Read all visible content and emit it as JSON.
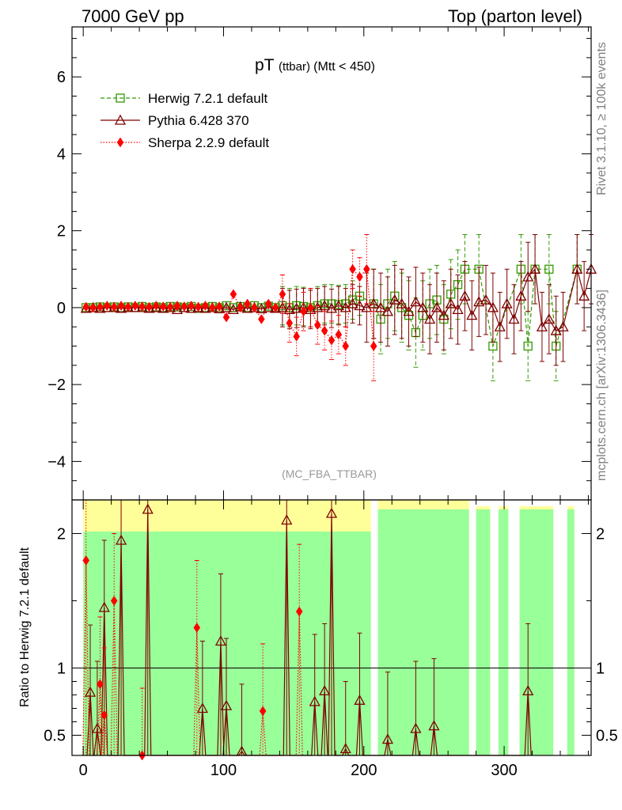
{
  "header": {
    "left": "7000 GeV pp",
    "right": "Top (parton level)"
  },
  "side_labels": {
    "rivet": "Rivet 3.1.10, ≥ 100k events",
    "mcplots": "mcplots.cern.ch [arXiv:1306.3436]"
  },
  "chart_data": [
    {
      "type": "line",
      "title_main": "pT",
      "title_sub": "(ttbar)",
      "title_cut": "(Mtt < 450)",
      "analysis": "(MC_FBA_TTBAR)",
      "xlim": [
        -8,
        362
      ],
      "ylim": [
        -5,
        7.3
      ],
      "y_ticks": [
        -4,
        -2,
        0,
        2,
        4,
        6
      ],
      "y_tick_labels": [
        "−4",
        "−2",
        "0",
        "2",
        "4",
        "6"
      ],
      "legend_position": "top-left",
      "series": [
        {
          "name": "Herwig 7.2.1 default",
          "color": "#339900",
          "marker": "open-square",
          "line": "dashed",
          "points": [
            [
              2,
              0.0
            ],
            [
              7,
              0.0
            ],
            [
              12,
              0.02
            ],
            [
              17,
              0.0
            ],
            [
              22,
              0.02
            ],
            [
              27,
              0.0
            ],
            [
              32,
              0.02
            ],
            [
              37,
              0.0
            ],
            [
              42,
              0.03
            ],
            [
              47,
              0.0
            ],
            [
              52,
              0.02
            ],
            [
              57,
              0.0
            ],
            [
              62,
              0.03
            ],
            [
              67,
              0.02
            ],
            [
              72,
              0.0
            ],
            [
              77,
              0.03
            ],
            [
              82,
              -0.02
            ],
            [
              87,
              0.0
            ],
            [
              92,
              0.03
            ],
            [
              97,
              0.0
            ],
            [
              102,
              0.05
            ],
            [
              107,
              0.0
            ],
            [
              112,
              0.03
            ],
            [
              117,
              0.0
            ],
            [
              122,
              0.05
            ],
            [
              127,
              0.0
            ],
            [
              132,
              0.04
            ],
            [
              137,
              0.0
            ],
            [
              142,
              0.05
            ],
            [
              147,
              0.0
            ],
            [
              152,
              0.05
            ],
            [
              157,
              0.03
            ],
            [
              162,
              0.0
            ],
            [
              167,
              0.05
            ],
            [
              172,
              0.1
            ],
            [
              177,
              0.1
            ],
            [
              182,
              0.08
            ],
            [
              187,
              0.1
            ],
            [
              192,
              0.2
            ],
            [
              197,
              0.3
            ],
            [
              207,
              0.1
            ],
            [
              212,
              -0.3
            ],
            [
              217,
              0.1
            ],
            [
              222,
              0.3
            ],
            [
              227,
              0.0
            ],
            [
              232,
              -0.2
            ],
            [
              237,
              -0.65
            ],
            [
              242,
              -0.2
            ],
            [
              247,
              0.1
            ],
            [
              252,
              0.2
            ],
            [
              257,
              -0.3
            ],
            [
              262,
              0.35
            ],
            [
              267,
              0.6
            ],
            [
              272,
              1.0
            ],
            [
              282,
              1.0
            ],
            [
              292,
              -1.0
            ],
            [
              312,
              1.0
            ],
            [
              317,
              -1.0
            ],
            [
              322,
              1.0
            ],
            [
              332,
              1.0
            ],
            [
              337,
              -1.0
            ],
            [
              352,
              1.0
            ]
          ]
        },
        {
          "name": "Pythia 6.428 370",
          "color": "#7f0000",
          "marker": "open-triangle",
          "line": "solid",
          "points": [
            [
              2,
              -0.02
            ],
            [
              7,
              0.0
            ],
            [
              12,
              -0.02
            ],
            [
              17,
              0.0
            ],
            [
              22,
              0.0
            ],
            [
              27,
              -0.02
            ],
            [
              32,
              0.0
            ],
            [
              37,
              0.0
            ],
            [
              42,
              0.0
            ],
            [
              47,
              -0.02
            ],
            [
              52,
              0.0
            ],
            [
              57,
              -0.02
            ],
            [
              62,
              0.0
            ],
            [
              67,
              -0.05
            ],
            [
              72,
              0.0
            ],
            [
              77,
              -0.02
            ],
            [
              82,
              0.0
            ],
            [
              87,
              -0.02
            ],
            [
              92,
              0.0
            ],
            [
              97,
              -0.03
            ],
            [
              102,
              0.0
            ],
            [
              107,
              -0.05
            ],
            [
              112,
              0.02
            ],
            [
              117,
              -0.02
            ],
            [
              122,
              0.0
            ],
            [
              127,
              -0.03
            ],
            [
              132,
              0.0
            ],
            [
              137,
              -0.02
            ],
            [
              142,
              0.0
            ],
            [
              147,
              -0.05
            ],
            [
              152,
              -0.02
            ],
            [
              157,
              0.0
            ],
            [
              162,
              -0.05
            ],
            [
              167,
              0.0
            ],
            [
              172,
              0.05
            ],
            [
              177,
              -0.02
            ],
            [
              182,
              0.05
            ],
            [
              187,
              0.0
            ],
            [
              192,
              0.1
            ],
            [
              197,
              0.05
            ],
            [
              202,
              0.0
            ],
            [
              207,
              0.1
            ],
            [
              212,
              0.0
            ],
            [
              217,
              -0.1
            ],
            [
              222,
              0.2
            ],
            [
              227,
              0.1
            ],
            [
              232,
              -0.1
            ],
            [
              237,
              0.15
            ],
            [
              242,
              0.0
            ],
            [
              247,
              -0.3
            ],
            [
              252,
              0.0
            ],
            [
              257,
              -0.2
            ],
            [
              262,
              0.1
            ],
            [
              267,
              -0.05
            ],
            [
              272,
              0.3
            ],
            [
              277,
              -0.2
            ],
            [
              282,
              0.15
            ],
            [
              287,
              0.2
            ],
            [
              292,
              0.0
            ],
            [
              297,
              -0.5
            ],
            [
              302,
              0.1
            ],
            [
              307,
              -0.3
            ],
            [
              312,
              0.3
            ],
            [
              317,
              0.8
            ],
            [
              322,
              1.0
            ],
            [
              327,
              -0.5
            ],
            [
              332,
              -0.3
            ],
            [
              337,
              -0.6
            ],
            [
              342,
              -0.5
            ],
            [
              352,
              1.0
            ],
            [
              357,
              0.3
            ],
            [
              362,
              1.0
            ]
          ]
        },
        {
          "name": "Sherpa 2.2.9 default",
          "color": "#ff0000",
          "marker": "filled-diamond",
          "line": "dotted",
          "points": [
            [
              2,
              0.02
            ],
            [
              7,
              0.0
            ],
            [
              12,
              0.02
            ],
            [
              17,
              0.05
            ],
            [
              22,
              0.02
            ],
            [
              27,
              0.05
            ],
            [
              32,
              0.02
            ],
            [
              37,
              0.05
            ],
            [
              42,
              0.03
            ],
            [
              47,
              0.02
            ],
            [
              52,
              0.05
            ],
            [
              57,
              0.03
            ],
            [
              62,
              0.02
            ],
            [
              67,
              0.05
            ],
            [
              72,
              0.03
            ],
            [
              77,
              0.05
            ],
            [
              82,
              0.02
            ],
            [
              87,
              0.05
            ],
            [
              92,
              0.0
            ],
            [
              97,
              0.03
            ],
            [
              102,
              -0.25
            ],
            [
              107,
              0.35
            ],
            [
              112,
              0.0
            ],
            [
              117,
              0.1
            ],
            [
              122,
              0.0
            ],
            [
              127,
              -0.3
            ],
            [
              132,
              0.1
            ],
            [
              137,
              0.0
            ],
            [
              142,
              0.35
            ],
            [
              147,
              -0.4
            ],
            [
              152,
              -0.75
            ],
            [
              157,
              -0.1
            ],
            [
              162,
              0.0
            ],
            [
              167,
              -0.45
            ],
            [
              172,
              -0.6
            ],
            [
              177,
              -0.85
            ],
            [
              182,
              -0.7
            ],
            [
              187,
              -1.0
            ],
            [
              192,
              1.0
            ],
            [
              197,
              0.8
            ],
            [
              202,
              1.0
            ],
            [
              207,
              -1.0
            ]
          ]
        }
      ]
    },
    {
      "type": "line",
      "ylabel": "Ratio to Herwig 7.2.1 default",
      "xlim": [
        -8,
        362
      ],
      "ylim": [
        0.35,
        2.25
      ],
      "x_ticks": [
        0,
        100,
        200,
        300
      ],
      "x_tick_labels": [
        "0",
        "100",
        "200",
        "300"
      ],
      "y_ticks": [
        0.5,
        1,
        2
      ],
      "y_tick_labels": [
        "0.5",
        "1",
        "2"
      ],
      "reference_line": 1,
      "band_colors": {
        "inner": "#99ff99",
        "outer": "#ffff99"
      },
      "band_ranges_x": [
        [
          0,
          205
        ],
        [
          210,
          275
        ],
        [
          280,
          290
        ],
        [
          296,
          303
        ],
        [
          311,
          335
        ],
        [
          345,
          350
        ]
      ],
      "series": [
        {
          "name": "Pythia 6.428 370",
          "color": "#7f0000",
          "marker": "open-triangle",
          "points": [
            [
              5,
              0.82
            ],
            [
              10,
              0.55
            ],
            [
              15,
              1.45
            ],
            [
              27,
              1.95
            ],
            [
              46,
              2.18
            ],
            [
              85,
              0.7
            ],
            [
              98,
              1.2
            ],
            [
              102,
              0.72
            ],
            [
              113,
              0.38
            ],
            [
              145,
              2.1
            ],
            [
              165,
              0.75
            ],
            [
              172,
              0.83
            ],
            [
              177,
              2.15
            ],
            [
              187,
              0.4
            ],
            [
              197,
              0.76
            ],
            [
              217,
              0.47
            ],
            [
              237,
              0.55
            ],
            [
              250,
              0.57
            ],
            [
              317,
              0.83
            ]
          ]
        },
        {
          "name": "Sherpa 2.2.9 default",
          "color": "#ff0000",
          "marker": "filled-diamond",
          "points": [
            [
              2,
              1.8
            ],
            [
              12,
              0.88
            ],
            [
              15,
              0.65
            ],
            [
              22,
              1.5
            ],
            [
              42,
              0.35
            ],
            [
              81,
              1.3
            ],
            [
              128,
              0.68
            ],
            [
              154,
              1.42
            ]
          ]
        }
      ]
    }
  ]
}
